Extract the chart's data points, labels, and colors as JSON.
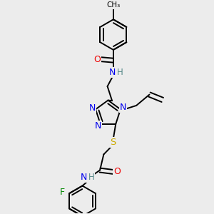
{
  "background_color": "#ececec",
  "atom_colors": {
    "C": "#000000",
    "N": "#0000ee",
    "O": "#ee0000",
    "S": "#ccaa00",
    "F": "#008800",
    "H": "#558888"
  },
  "bond_color": "#000000",
  "line_width": 1.4,
  "font_size": 8.5,
  "figsize": [
    3.0,
    3.0
  ],
  "dpi": 100,
  "xlim": [
    0,
    10
  ],
  "ylim": [
    0,
    10
  ]
}
